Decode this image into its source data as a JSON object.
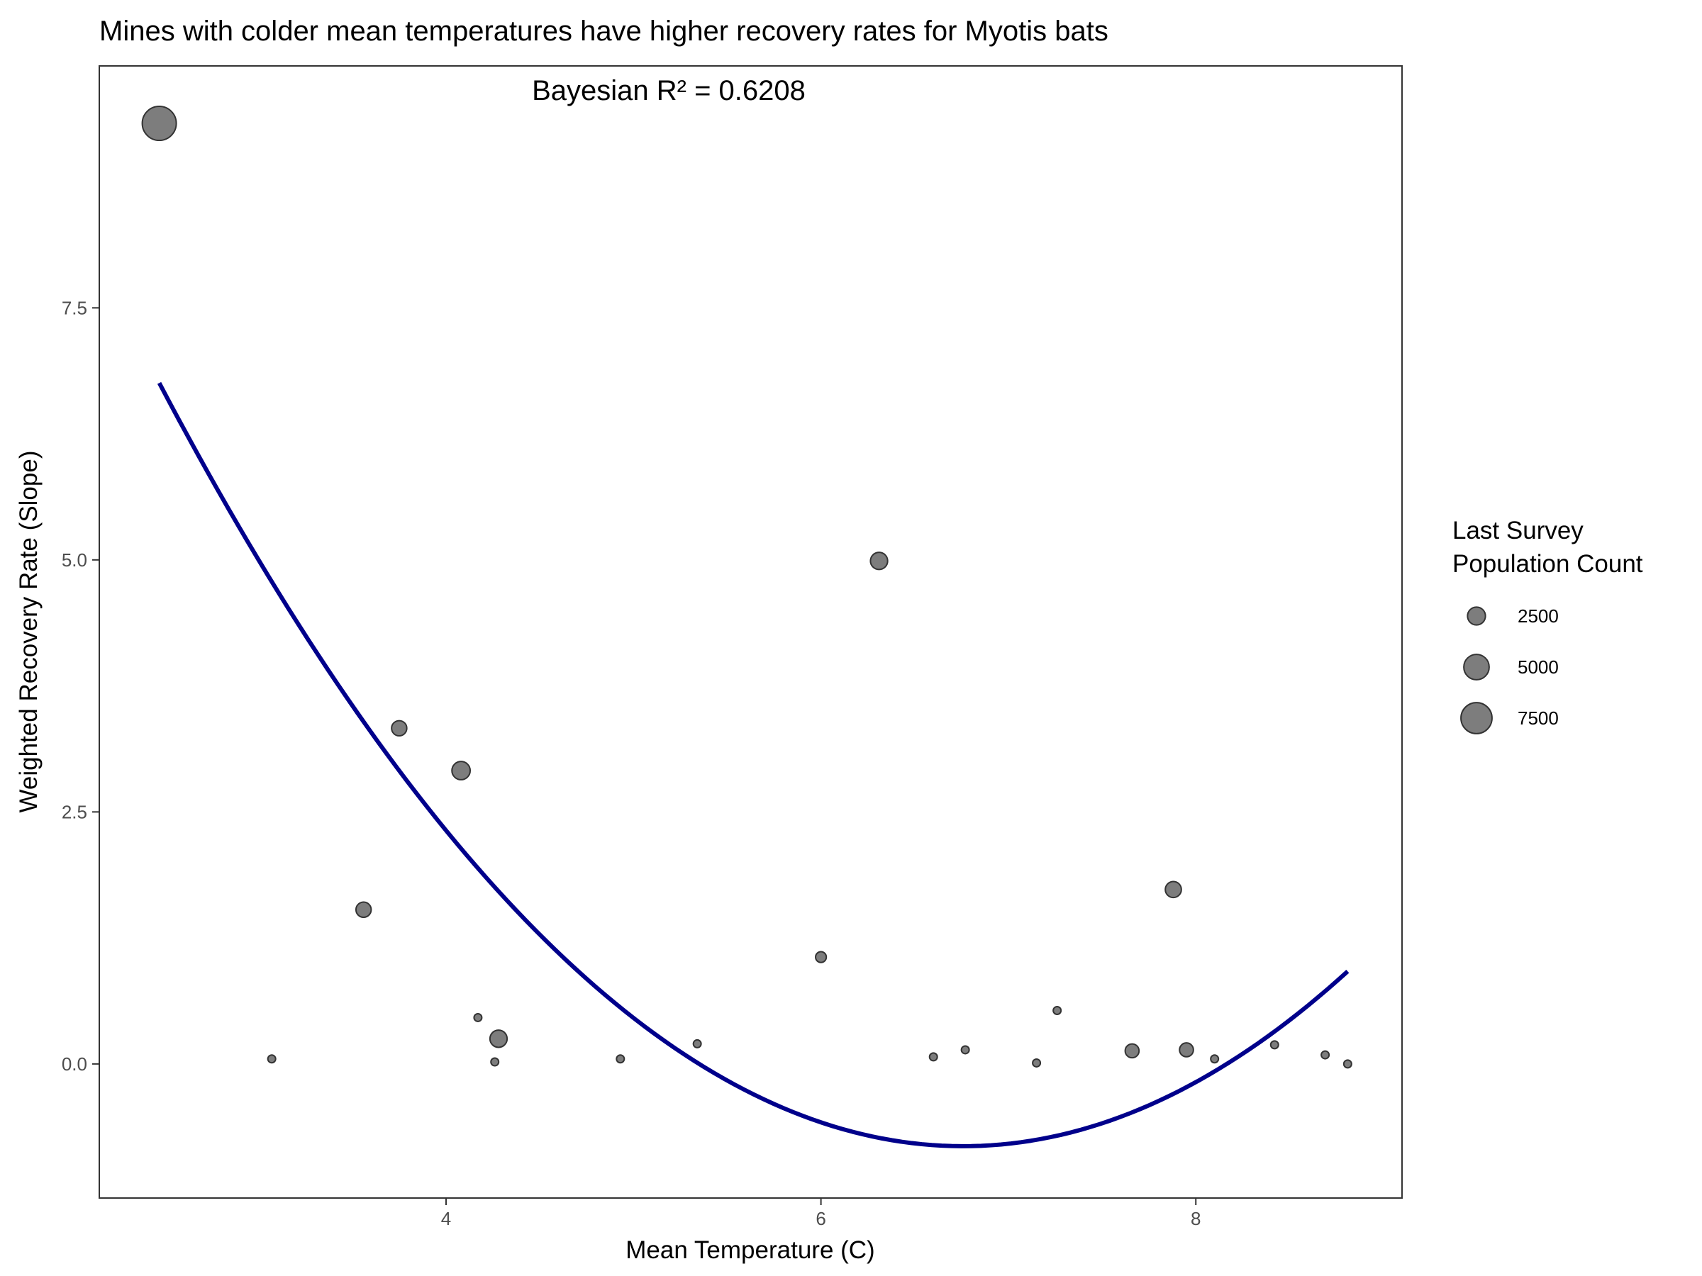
{
  "chart_data": {
    "type": "scatter",
    "title": "Mines with colder mean temperatures have higher recovery rates for Myotis bats",
    "annotation": "Bayesian R² = 0.6208",
    "xlabel": "Mean Temperature (C)",
    "ylabel": "Weighted Recovery Rate (Slope)",
    "xlim": [
      2.15,
      9.1
    ],
    "ylim": [
      -1.33,
      9.9
    ],
    "xticks": [
      4,
      6,
      8
    ],
    "xtick_labels": [
      "4",
      "6",
      "8"
    ],
    "yticks": [
      0,
      2.5,
      5,
      7.5
    ],
    "ytick_labels": [
      "0.0",
      "2.5",
      "5.0",
      "7.5"
    ],
    "grid": false,
    "point_color": "#666666",
    "curve_color": "#00008b",
    "points": [
      {
        "x": 2.47,
        "y": 9.33,
        "size": 9000
      },
      {
        "x": 3.07,
        "y": 0.05,
        "size": 150
      },
      {
        "x": 3.56,
        "y": 1.53,
        "size": 1800
      },
      {
        "x": 3.75,
        "y": 3.33,
        "size": 1800
      },
      {
        "x": 4.08,
        "y": 2.91,
        "size": 2600
      },
      {
        "x": 4.17,
        "y": 0.46,
        "size": 300
      },
      {
        "x": 4.26,
        "y": 0.02,
        "size": 150
      },
      {
        "x": 4.28,
        "y": 0.25,
        "size": 2300
      },
      {
        "x": 4.93,
        "y": 0.05,
        "size": 150
      },
      {
        "x": 5.34,
        "y": 0.2,
        "size": 300
      },
      {
        "x": 6.0,
        "y": 1.06,
        "size": 900
      },
      {
        "x": 6.31,
        "y": 4.99,
        "size": 2300
      },
      {
        "x": 6.6,
        "y": 0.07,
        "size": 150
      },
      {
        "x": 6.77,
        "y": 0.14,
        "size": 150
      },
      {
        "x": 7.15,
        "y": 0.01,
        "size": 150
      },
      {
        "x": 7.26,
        "y": 0.53,
        "size": 300
      },
      {
        "x": 7.66,
        "y": 0.13,
        "size": 1500
      },
      {
        "x": 7.88,
        "y": 1.73,
        "size": 2000
      },
      {
        "x": 7.95,
        "y": 0.14,
        "size": 1500
      },
      {
        "x": 8.1,
        "y": 0.05,
        "size": 150
      },
      {
        "x": 8.42,
        "y": 0.19,
        "size": 150
      },
      {
        "x": 8.69,
        "y": 0.09,
        "size": 150
      },
      {
        "x": 8.81,
        "y": 0.0,
        "size": 150
      }
    ],
    "fit_curve": {
      "type": "quadratic",
      "x_range": [
        2.47,
        8.81
      ],
      "coefficients": {
        "a": 0.4118,
        "b": -5.5657,
        "c": 17.99
      }
    },
    "legend": {
      "title_lines": [
        "Last Survey",
        "Population Count"
      ],
      "placement": "right",
      "entries": [
        {
          "label": "2500",
          "size": 2500
        },
        {
          "label": "5000",
          "size": 5000
        },
        {
          "label": "7500",
          "size": 7500
        }
      ]
    }
  }
}
